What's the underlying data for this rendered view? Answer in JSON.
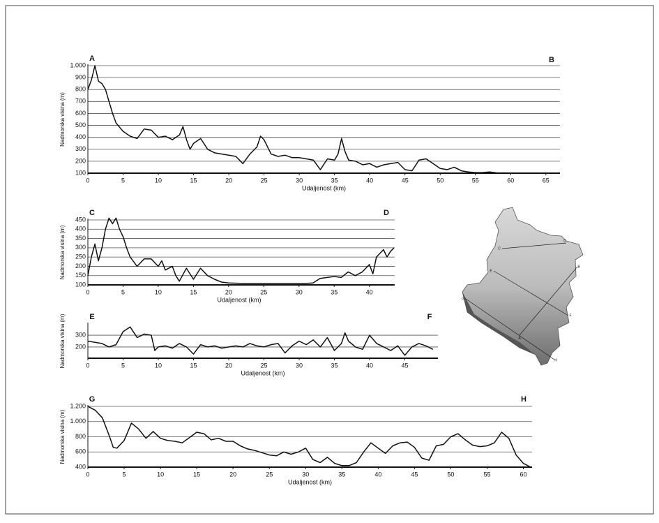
{
  "chart_data": [
    {
      "type": "line",
      "start_label": "A",
      "end_label": "B",
      "ylabel": "Nadmorska visina (m)",
      "xlabel": "Udaljenost (km)",
      "color": "#111111",
      "grid": true,
      "xlim": [
        0,
        67
      ],
      "xticks": [
        0,
        5,
        10,
        15,
        20,
        25,
        30,
        35,
        40,
        45,
        50,
        55,
        60,
        65
      ],
      "ylim": [
        100,
        1000
      ],
      "yticks": [
        100,
        200,
        300,
        400,
        500,
        600,
        700,
        800,
        900,
        {
          "value": 1000,
          "label": "1.000"
        }
      ],
      "x": [
        0,
        0.5,
        1,
        1.5,
        2,
        2.5,
        3,
        3.5,
        4,
        5,
        6,
        7,
        8,
        9,
        10,
        11,
        12,
        13,
        13.5,
        14,
        14.5,
        15,
        16,
        17,
        18,
        19,
        20,
        21,
        22,
        23,
        24,
        24.5,
        25,
        26,
        27,
        28,
        29,
        30,
        31,
        32,
        33,
        34,
        35,
        35.5,
        36,
        36.5,
        37,
        38,
        39,
        40,
        41,
        42,
        43,
        44,
        45,
        46,
        47,
        48,
        49,
        50,
        51,
        52,
        53,
        54,
        55,
        56,
        57,
        58,
        60,
        62,
        64,
        66.5
      ],
      "values": [
        800,
        880,
        1000,
        870,
        850,
        800,
        700,
        600,
        520,
        450,
        410,
        390,
        470,
        460,
        400,
        410,
        380,
        420,
        490,
        380,
        300,
        350,
        390,
        300,
        270,
        260,
        250,
        240,
        180,
        260,
        320,
        410,
        380,
        260,
        240,
        250,
        230,
        230,
        220,
        210,
        130,
        220,
        210,
        260,
        390,
        280,
        210,
        200,
        170,
        180,
        150,
        170,
        180,
        190,
        130,
        120,
        210,
        220,
        180,
        140,
        130,
        150,
        120,
        110,
        105,
        105,
        110,
        103,
        102,
        101,
        100,
        100
      ]
    },
    {
      "type": "line",
      "start_label": "C",
      "end_label": "D",
      "ylabel": "Nadmorska visina (m)",
      "xlabel": "Udaljenost (km)",
      "color": "#111111",
      "grid": true,
      "xlim": [
        0,
        43.6
      ],
      "xticks": [
        0,
        5,
        10,
        15,
        20,
        25,
        30,
        35,
        40
      ],
      "ylim": [
        100,
        450
      ],
      "yticks": [
        100,
        150,
        200,
        250,
        300,
        350,
        400,
        450
      ],
      "x": [
        0,
        0.5,
        1,
        1.5,
        2,
        2.5,
        3,
        3.5,
        4,
        4.5,
        5,
        5.5,
        6,
        7,
        8,
        9,
        10,
        10.5,
        11,
        12,
        12.5,
        13,
        14,
        15,
        16,
        17,
        18,
        19,
        20,
        22,
        25,
        28,
        31,
        32,
        33,
        34,
        35,
        36,
        37,
        38,
        39,
        40,
        40.5,
        41,
        42,
        42.5,
        43,
        43.5
      ],
      "values": [
        150,
        250,
        320,
        230,
        300,
        400,
        460,
        430,
        460,
        400,
        360,
        300,
        250,
        200,
        240,
        240,
        200,
        230,
        180,
        200,
        150,
        120,
        190,
        130,
        190,
        150,
        130,
        115,
        110,
        108,
        108,
        108,
        108,
        110,
        135,
        140,
        145,
        140,
        170,
        150,
        170,
        210,
        160,
        250,
        290,
        250,
        280,
        300
      ]
    },
    {
      "type": "line",
      "start_label": "E",
      "end_label": "F",
      "ylabel": "Nadmorska visina (m)",
      "xlabel": "Udaljenost (km)",
      "color": "#111111",
      "grid": true,
      "xlim": [
        0,
        49.7
      ],
      "xticks": [
        0,
        5,
        10,
        15,
        20,
        25,
        30,
        35,
        40,
        45
      ],
      "ylim": [
        105,
        395
      ],
      "yticks": [
        200,
        300
      ],
      "x": [
        0,
        1,
        2,
        3,
        4,
        5,
        6,
        7,
        8,
        9,
        9.5,
        10,
        11,
        12,
        13,
        14,
        15,
        16,
        17,
        18,
        19,
        20,
        21,
        22,
        23,
        24,
        25,
        26,
        27,
        28,
        29,
        30,
        31,
        32,
        33,
        34,
        35,
        36,
        36.5,
        37,
        38,
        39,
        40,
        41,
        42,
        43,
        44,
        45,
        46,
        47,
        48,
        49
      ],
      "values": [
        250,
        240,
        230,
        200,
        220,
        330,
        370,
        280,
        310,
        300,
        170,
        200,
        210,
        190,
        230,
        200,
        140,
        220,
        200,
        210,
        190,
        200,
        210,
        200,
        230,
        210,
        200,
        220,
        230,
        150,
        210,
        250,
        220,
        260,
        200,
        280,
        170,
        230,
        320,
        250,
        200,
        180,
        300,
        230,
        200,
        170,
        210,
        130,
        200,
        230,
        210,
        180
      ]
    },
    {
      "type": "line",
      "start_label": "G",
      "end_label": "H",
      "ylabel": "Nadmorska visina (m)",
      "xlabel": "Udaljenost (km)",
      "color": "#111111",
      "grid": true,
      "xlim": [
        0,
        61.2
      ],
      "xticks": [
        0,
        5,
        10,
        15,
        20,
        25,
        30,
        35,
        40,
        45,
        50,
        55,
        60
      ],
      "ylim": [
        400,
        1200
      ],
      "yticks": [
        400,
        600,
        800,
        {
          "value": 1000,
          "label": "1.000"
        },
        {
          "value": 1200,
          "label": "1.200"
        }
      ],
      "x": [
        0,
        1,
        2,
        3,
        3.5,
        4,
        5,
        6,
        7,
        8,
        9,
        10,
        11,
        12,
        13,
        14,
        15,
        16,
        17,
        18,
        19,
        20,
        21,
        22,
        23,
        24,
        25,
        26,
        27,
        28,
        29,
        30,
        31,
        32,
        33,
        34,
        35,
        36,
        37,
        38,
        39,
        40,
        41,
        42,
        43,
        44,
        45,
        46,
        47,
        48,
        49,
        50,
        51,
        52,
        53,
        54,
        55,
        56,
        57,
        58,
        59,
        60,
        61
      ],
      "values": [
        1200,
        1150,
        1050,
        800,
        660,
        650,
        750,
        980,
        900,
        780,
        870,
        780,
        750,
        740,
        720,
        790,
        860,
        840,
        760,
        780,
        740,
        740,
        680,
        640,
        620,
        590,
        560,
        550,
        600,
        570,
        600,
        650,
        500,
        460,
        530,
        450,
        420,
        420,
        460,
        600,
        720,
        650,
        580,
        680,
        720,
        730,
        660,
        520,
        490,
        680,
        700,
        800,
        840,
        760,
        690,
        670,
        680,
        720,
        860,
        780,
        560,
        450,
        400
      ]
    }
  ],
  "map": {
    "labels": [
      "C",
      "D",
      "B",
      "E",
      "F",
      "G",
      "A",
      "H"
    ]
  }
}
